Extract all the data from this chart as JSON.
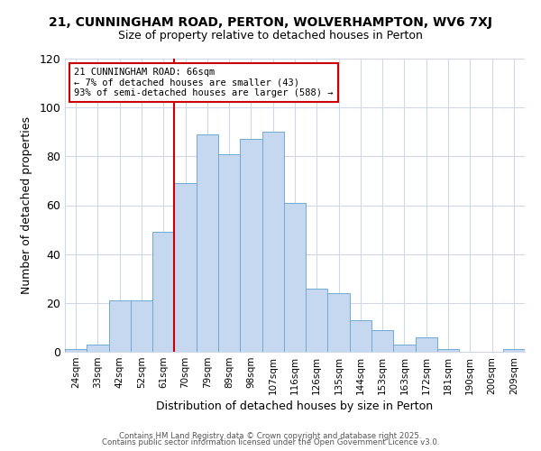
{
  "title": "21, CUNNINGHAM ROAD, PERTON, WOLVERHAMPTON, WV6 7XJ",
  "subtitle": "Size of property relative to detached houses in Perton",
  "xlabel": "Distribution of detached houses by size in Perton",
  "ylabel": "Number of detached properties",
  "categories": [
    "24sqm",
    "33sqm",
    "42sqm",
    "52sqm",
    "61sqm",
    "70sqm",
    "79sqm",
    "89sqm",
    "98sqm",
    "107sqm",
    "116sqm",
    "126sqm",
    "135sqm",
    "144sqm",
    "153sqm",
    "163sqm",
    "172sqm",
    "181sqm",
    "190sqm",
    "200sqm",
    "209sqm"
  ],
  "values": [
    1,
    3,
    21,
    21,
    49,
    69,
    89,
    81,
    87,
    90,
    61,
    26,
    24,
    13,
    9,
    3,
    6,
    1,
    0,
    0,
    1
  ],
  "bar_color": "#c5d8f0",
  "bar_edge_color": "#6faad4",
  "ylim": [
    0,
    120
  ],
  "yticks": [
    0,
    20,
    40,
    60,
    80,
    100,
    120
  ],
  "property_line_x": 4.5,
  "property_line_color": "#cc0000",
  "annotation_title": "21 CUNNINGHAM ROAD: 66sqm",
  "annotation_line1": "← 7% of detached houses are smaller (43)",
  "annotation_line2": "93% of semi-detached houses are larger (588) →",
  "annotation_box_color": "#cc0000",
  "footer1": "Contains HM Land Registry data © Crown copyright and database right 2025.",
  "footer2": "Contains public sector information licensed under the Open Government Licence v3.0.",
  "background_color": "#ffffff",
  "grid_color": "#d0d8e8"
}
